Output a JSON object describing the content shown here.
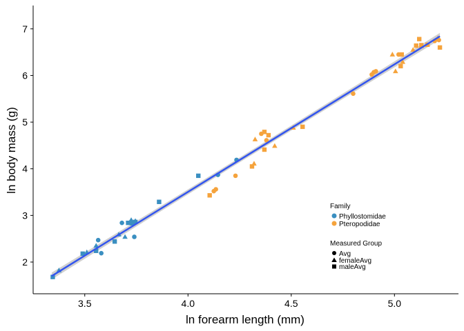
{
  "chart_data": {
    "type": "scatter",
    "title": "",
    "xlabel": "ln forearm length (mm)",
    "ylabel": "ln body mass (g)",
    "xlim": [
      3.25,
      5.31
    ],
    "ylim": [
      1.32,
      7.5
    ],
    "xticks": [
      3.5,
      4.0,
      4.5,
      5.0
    ],
    "xtick_labels": [
      "3.5",
      "4.0",
      "4.5",
      "5.0"
    ],
    "yticks": [
      2,
      3,
      4,
      5,
      6,
      7
    ],
    "ytick_labels": [
      "2",
      "3",
      "4",
      "5",
      "6",
      "7"
    ],
    "grid": false,
    "legend_placement": "bottom-right",
    "colors": {
      "Phyllostomidae": "#3a8fc1",
      "Pteropodidae": "#f5a33c",
      "fit_line": "#3355ee",
      "ci_band": "#c8c8c8"
    },
    "fit": {
      "method": "linear",
      "x": [
        3.34,
        5.22
      ],
      "y": [
        1.7,
        6.84
      ],
      "ci_band": true
    },
    "legend_family": {
      "title": "Family",
      "entries": [
        "Phyllostomidae",
        "Pteropodidae"
      ]
    },
    "legend_group": {
      "title": "Measured Group",
      "entries": [
        {
          "label": "Avg",
          "shape": "circle"
        },
        {
          "label": "femaleAvg",
          "shape": "triangle"
        },
        {
          "label": "maleAvg",
          "shape": "square"
        }
      ]
    },
    "series": [
      {
        "family": "Phyllostomidae",
        "group": "Avg",
        "points": [
          [
            3.565,
            2.47
          ],
          [
            3.58,
            2.19
          ],
          [
            3.68,
            2.84
          ],
          [
            3.74,
            2.54
          ],
          [
            3.74,
            2.84
          ],
          [
            3.725,
            2.87
          ],
          [
            4.145,
            3.87
          ],
          [
            4.235,
            4.19
          ]
        ]
      },
      {
        "family": "Phyllostomidae",
        "group": "femaleAvg",
        "points": [
          [
            3.375,
            1.82
          ],
          [
            3.51,
            2.21
          ],
          [
            3.555,
            2.35
          ],
          [
            3.665,
            2.59
          ],
          [
            3.695,
            2.54
          ],
          [
            3.725,
            2.9
          ],
          [
            3.745,
            2.88
          ]
        ]
      },
      {
        "family": "Phyllostomidae",
        "group": "maleAvg",
        "points": [
          [
            3.345,
            1.68
          ],
          [
            3.49,
            2.18
          ],
          [
            3.555,
            2.24
          ],
          [
            3.645,
            2.44
          ],
          [
            3.71,
            2.84
          ],
          [
            3.73,
            2.83
          ],
          [
            3.745,
            2.86
          ],
          [
            3.86,
            3.29
          ],
          [
            4.05,
            3.85
          ]
        ]
      },
      {
        "family": "Pteropodidae",
        "group": "Avg",
        "points": [
          [
            4.125,
            3.52
          ],
          [
            4.135,
            3.56
          ],
          [
            4.23,
            3.85
          ],
          [
            4.355,
            4.75
          ],
          [
            4.38,
            4.61
          ],
          [
            4.8,
            5.61
          ],
          [
            4.89,
            6.02
          ],
          [
            4.9,
            6.07
          ],
          [
            4.91,
            6.09
          ],
          [
            5.02,
            6.45
          ],
          [
            5.195,
            6.74
          ],
          [
            5.215,
            6.76
          ]
        ]
      },
      {
        "family": "Pteropodidae",
        "group": "femaleAvg",
        "points": [
          [
            4.32,
            4.11
          ],
          [
            4.325,
            4.63
          ],
          [
            4.42,
            4.49
          ],
          [
            4.51,
            4.88
          ],
          [
            4.99,
            6.45
          ],
          [
            5.005,
            6.09
          ],
          [
            5.04,
            6.29
          ],
          [
            5.09,
            6.55
          ],
          [
            5.13,
            6.63
          ],
          [
            5.21,
            6.8
          ]
        ]
      },
      {
        "family": "Pteropodidae",
        "group": "maleAvg",
        "points": [
          [
            4.105,
            3.43
          ],
          [
            4.31,
            4.05
          ],
          [
            4.37,
            4.79
          ],
          [
            4.37,
            4.41
          ],
          [
            4.39,
            4.72
          ],
          [
            4.555,
            4.9
          ],
          [
            5.03,
            6.2
          ],
          [
            5.035,
            6.45
          ],
          [
            5.105,
            6.64
          ],
          [
            5.12,
            6.78
          ],
          [
            5.13,
            6.65
          ],
          [
            5.22,
            6.6
          ],
          [
            5.16,
            6.66
          ]
        ]
      }
    ]
  }
}
